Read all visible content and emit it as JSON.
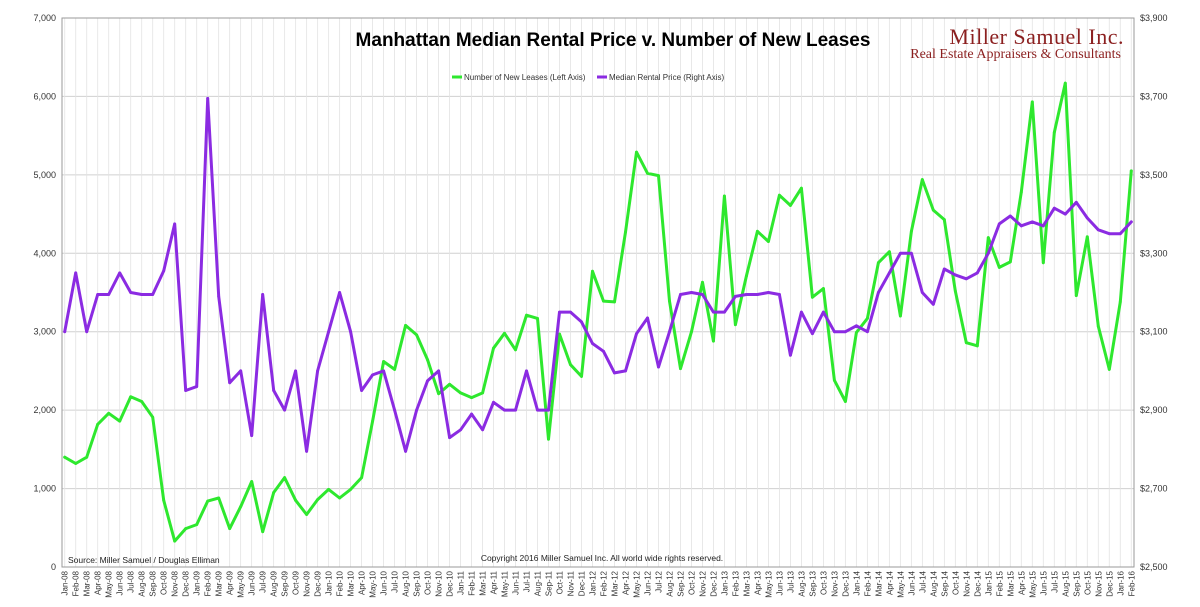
{
  "chart_data": {
    "type": "line",
    "title": "Manhattan Median Rental Price v. Number of New Leases",
    "brand": {
      "name": "Miller Samuel Inc.",
      "tagline": "Real Estate Appraisers & Consultants"
    },
    "source": "Source: Miller Samuel / Douglas Elliman",
    "copyright": "Copyright 2016 Miller Samuel Inc.  All world wide rights reserved.",
    "left_axis": {
      "range": [
        0,
        7000
      ],
      "ticks": [
        0,
        1000,
        2000,
        3000,
        4000,
        5000,
        6000,
        7000
      ],
      "tick_labels": [
        "0",
        "1,000",
        "2,000",
        "3,000",
        "4,000",
        "5,000",
        "6,000",
        "7,000"
      ]
    },
    "right_axis": {
      "range": [
        2500,
        3900
      ],
      "ticks": [
        2500,
        2700,
        2900,
        3100,
        3300,
        3500,
        3700,
        3900
      ],
      "tick_labels": [
        "$2,500",
        "$2,700",
        "$2,900",
        "$3,100",
        "$3,300",
        "$3,500",
        "$3,700",
        "$3,900"
      ]
    },
    "categories": [
      "Jan-08",
      "Feb-08",
      "Mar-08",
      "Apr-08",
      "May-08",
      "Jun-08",
      "Jul-08",
      "Aug-08",
      "Sep-08",
      "Oct-08",
      "Nov-08",
      "Dec-08",
      "Jan-09",
      "Feb-09",
      "Mar-09",
      "Apr-09",
      "May-09",
      "Jun-09",
      "Jul-09",
      "Aug-09",
      "Sep-09",
      "Oct-09",
      "Nov-09",
      "Dec-09",
      "Jan-10",
      "Feb-10",
      "Mar-10",
      "Apr-10",
      "May-10",
      "Jun-10",
      "Jul-10",
      "Aug-10",
      "Sep-10",
      "Oct-10",
      "Nov-10",
      "Dec-10",
      "Jan-11",
      "Feb-11",
      "Mar-11",
      "Apr-11",
      "May-11",
      "Jun-11",
      "Jul-11",
      "Aug-11",
      "Sep-11",
      "Oct-11",
      "Nov-11",
      "Dec-11",
      "Jan-12",
      "Feb-12",
      "Mar-12",
      "Apr-12",
      "May-12",
      "Jun-12",
      "Jul-12",
      "Aug-12",
      "Sep-12",
      "Oct-12",
      "Nov-12",
      "Dec-12",
      "Jan-13",
      "Feb-13",
      "Mar-13",
      "Apr-13",
      "May-13",
      "Jun-13",
      "Jul-13",
      "Aug-13",
      "Sep-13",
      "Oct-13",
      "Nov-13",
      "Dec-13",
      "Jan-14",
      "Feb-14",
      "Mar-14",
      "Apr-14",
      "May-14",
      "Jun-14",
      "Jul-14",
      "Aug-14",
      "Sep-14",
      "Oct-14",
      "Nov-14",
      "Dec-14",
      "Jan-15",
      "Feb-15",
      "Mar-15",
      "Apr-15",
      "May-15",
      "Jun-15",
      "Jul-15",
      "Aug-15",
      "Sep-15",
      "Oct-15",
      "Nov-15",
      "Dec-15",
      "Jan-16",
      "Feb-16"
    ],
    "series": [
      {
        "name": "Number of New Leases (Left Axis)",
        "axis": "left",
        "color": "#2ee82e",
        "values": [
          1400,
          1320,
          1400,
          1820,
          1960,
          1860,
          2170,
          2110,
          1910,
          850,
          330,
          490,
          540,
          840,
          880,
          490,
          770,
          1090,
          450,
          950,
          1140,
          850,
          670,
          860,
          990,
          880,
          990,
          1140,
          1860,
          2620,
          2520,
          3080,
          2960,
          2640,
          2210,
          2330,
          2220,
          2160,
          2220,
          2790,
          2980,
          2770,
          3210,
          3170,
          1630,
          2970,
          2580,
          2430,
          3770,
          3390,
          3380,
          4270,
          5290,
          5020,
          4990,
          3390,
          2530,
          3000,
          3630,
          2880,
          4730,
          3090,
          3710,
          4280,
          4150,
          4740,
          4610,
          4830,
          3440,
          3550,
          2380,
          2110,
          2990,
          3170,
          3880,
          4020,
          3200,
          4280,
          4940,
          4550,
          4430,
          3520,
          2860,
          2820,
          4200,
          3820,
          3890,
          4780,
          5930,
          3880,
          5540,
          6170,
          3460,
          4210,
          3070,
          2520,
          3380,
          5050
        ]
      },
      {
        "name": "Median Rental Price (Right Axis)",
        "axis": "right",
        "color": "#8b2be2",
        "values": [
          3100,
          3250,
          3100,
          3195,
          3195,
          3250,
          3200,
          3195,
          3195,
          3255,
          3375,
          2950,
          2960,
          3695,
          3190,
          2970,
          3000,
          2835,
          3195,
          2950,
          2900,
          3000,
          2795,
          3000,
          3100,
          3200,
          3100,
          2950,
          2990,
          3000,
          2900,
          2795,
          2900,
          2975,
          3000,
          2830,
          2850,
          2890,
          2850,
          2920,
          2900,
          2900,
          3000,
          2900,
          2900,
          3150,
          3150,
          3125,
          3070,
          3050,
          2995,
          3000,
          3095,
          3135,
          3010,
          3100,
          3195,
          3200,
          3195,
          3150,
          3150,
          3190,
          3195,
          3195,
          3200,
          3195,
          3040,
          3150,
          3095,
          3150,
          3100,
          3100,
          3115,
          3100,
          3200,
          3250,
          3300,
          3300,
          3200,
          3170,
          3260,
          3245,
          3235,
          3250,
          3300,
          3375,
          3395,
          3370,
          3380,
          3370,
          3415,
          3400,
          3430,
          3390,
          3360,
          3350,
          3350,
          3380
        ]
      }
    ]
  }
}
